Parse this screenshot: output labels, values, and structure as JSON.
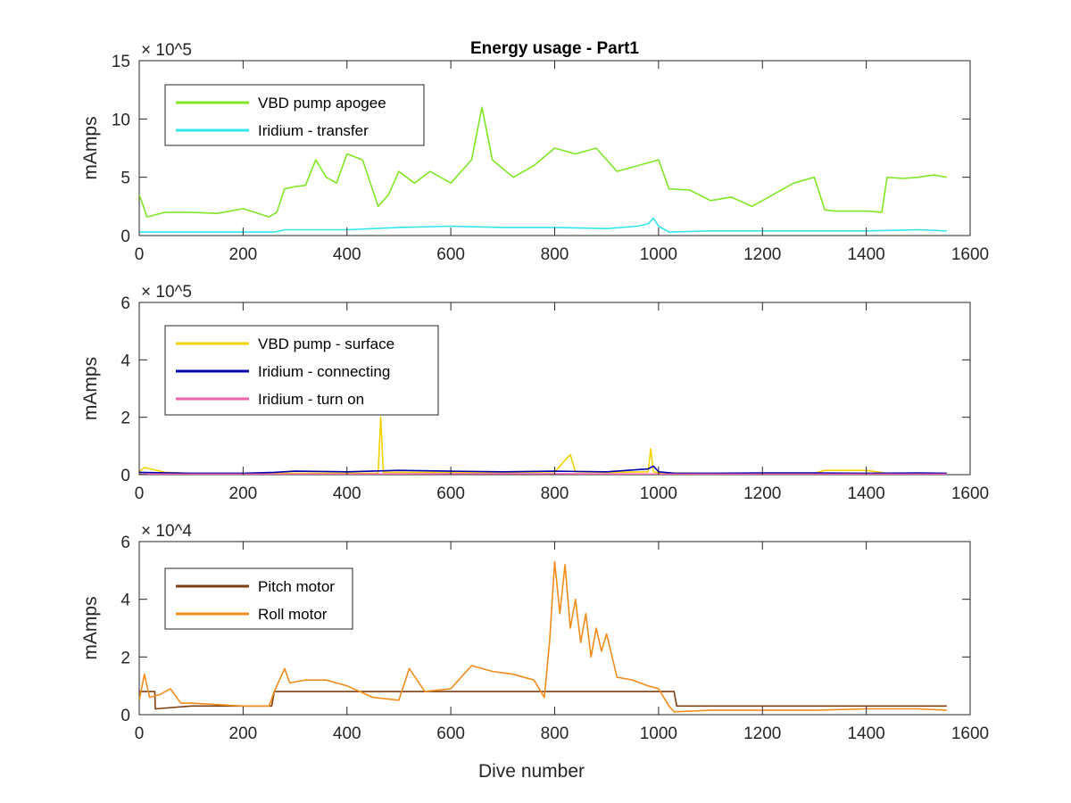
{
  "chart_data": [
    {
      "type": "line",
      "title": "Energy usage - Part1",
      "xlabel": "",
      "ylabel": "mAmps",
      "y_exponent": "× 10^5",
      "xlim": [
        0,
        1600
      ],
      "ylim": [
        0,
        15
      ],
      "x_ticks": [
        "0",
        "200",
        "400",
        "600",
        "800",
        "1000",
        "1200",
        "1400",
        "1600"
      ],
      "y_ticks": [
        "0",
        "5",
        "10",
        "15"
      ],
      "grid": false,
      "legend_position": "top-left",
      "series": [
        {
          "name": "VBD pump apogee",
          "color": "#80e626",
          "x": [
            0,
            8,
            15,
            50,
            100,
            150,
            200,
            250,
            265,
            280,
            300,
            320,
            340,
            360,
            380,
            400,
            430,
            460,
            480,
            500,
            530,
            560,
            600,
            640,
            660,
            680,
            720,
            760,
            800,
            840,
            880,
            920,
            960,
            1000,
            1020,
            1060,
            1100,
            1140,
            1180,
            1220,
            1260,
            1300,
            1320,
            1340,
            1400,
            1430,
            1440,
            1470,
            1500,
            1530,
            1555
          ],
          "values": [
            3.5,
            2.5,
            1.6,
            2.0,
            2.0,
            1.9,
            2.3,
            1.6,
            2.0,
            4.0,
            4.2,
            4.3,
            6.5,
            5.0,
            4.5,
            7.0,
            6.5,
            2.5,
            3.5,
            5.5,
            4.5,
            5.5,
            4.5,
            6.5,
            11.0,
            6.5,
            5.0,
            6.0,
            7.5,
            7.0,
            7.5,
            5.5,
            6.0,
            6.5,
            4.0,
            3.9,
            3.0,
            3.3,
            2.5,
            3.5,
            4.5,
            5.0,
            2.2,
            2.1,
            2.1,
            2.0,
            5.0,
            4.9,
            5.0,
            5.2,
            5.0
          ]
        },
        {
          "name": "Iridium - transfer",
          "color": "#33e6ee",
          "x": [
            0,
            50,
            100,
            200,
            260,
            280,
            400,
            500,
            600,
            700,
            800,
            900,
            960,
            980,
            990,
            1000,
            1020,
            1100,
            1200,
            1300,
            1400,
            1500,
            1555
          ],
          "values": [
            0.3,
            0.3,
            0.3,
            0.3,
            0.3,
            0.5,
            0.5,
            0.7,
            0.8,
            0.7,
            0.7,
            0.6,
            0.8,
            1.0,
            1.5,
            0.8,
            0.3,
            0.4,
            0.4,
            0.4,
            0.4,
            0.5,
            0.4
          ]
        }
      ]
    },
    {
      "type": "line",
      "title": "",
      "xlabel": "",
      "ylabel": "mAmps",
      "y_exponent": "× 10^5",
      "xlim": [
        0,
        1600
      ],
      "ylim": [
        0,
        6
      ],
      "x_ticks": [
        "0",
        "200",
        "400",
        "600",
        "800",
        "1000",
        "1200",
        "1400",
        "1600"
      ],
      "y_ticks": [
        "0",
        "2",
        "4",
        "6"
      ],
      "grid": false,
      "legend_position": "top-left",
      "series": [
        {
          "name": "VBD pump - surface",
          "color": "#f2d200",
          "x": [
            0,
            10,
            50,
            100,
            200,
            300,
            400,
            460,
            465,
            470,
            500,
            600,
            700,
            800,
            820,
            830,
            840,
            900,
            980,
            985,
            990,
            1000,
            1100,
            1200,
            1300,
            1320,
            1400,
            1440,
            1500,
            1555
          ],
          "values": [
            0.1,
            0.25,
            0.08,
            0.05,
            0.05,
            0.05,
            0.05,
            0.05,
            2.0,
            0.08,
            0.08,
            0.08,
            0.08,
            0.1,
            0.5,
            0.7,
            0.1,
            0.08,
            0.1,
            0.9,
            0.1,
            0.06,
            0.05,
            0.05,
            0.05,
            0.15,
            0.15,
            0.05,
            0.05,
            0.05
          ]
        },
        {
          "name": "Iridium - connecting",
          "color": "#0000b4",
          "x": [
            0,
            100,
            200,
            260,
            300,
            400,
            500,
            600,
            700,
            800,
            900,
            980,
            990,
            1000,
            1030,
            1100,
            1200,
            1300,
            1400,
            1500,
            1555
          ],
          "values": [
            0.08,
            0.05,
            0.05,
            0.08,
            0.12,
            0.1,
            0.15,
            0.12,
            0.1,
            0.12,
            0.1,
            0.2,
            0.3,
            0.1,
            0.05,
            0.05,
            0.06,
            0.06,
            0.05,
            0.06,
            0.05
          ]
        },
        {
          "name": "Iridium - turn on",
          "color": "#f062aa",
          "x": [
            0,
            200,
            400,
            600,
            800,
            1000,
            1200,
            1400,
            1555
          ],
          "values": [
            0.02,
            0.02,
            0.02,
            0.03,
            0.03,
            0.02,
            0.02,
            0.02,
            0.02
          ]
        }
      ]
    },
    {
      "type": "line",
      "title": "",
      "xlabel": "Dive number",
      "ylabel": "mAmps",
      "y_exponent": "× 10^4",
      "xlim": [
        0,
        1600
      ],
      "ylim": [
        0,
        6
      ],
      "x_ticks": [
        "0",
        "200",
        "400",
        "600",
        "800",
        "1000",
        "1200",
        "1400",
        "1600"
      ],
      "y_ticks": [
        "0",
        "2",
        "4",
        "6"
      ],
      "grid": false,
      "legend_position": "top-left",
      "series": [
        {
          "name": "Pitch motor",
          "color": "#7f3f12",
          "x": [
            0,
            30,
            31,
            100,
            200,
            255,
            260,
            400,
            600,
            800,
            1000,
            1030,
            1035,
            1200,
            1400,
            1555
          ],
          "values": [
            0.8,
            0.8,
            0.2,
            0.3,
            0.3,
            0.3,
            0.8,
            0.8,
            0.8,
            0.8,
            0.8,
            0.8,
            0.3,
            0.3,
            0.3,
            0.3
          ]
        },
        {
          "name": "Roll motor",
          "color": "#f28c1c",
          "x": [
            0,
            10,
            20,
            40,
            60,
            80,
            100,
            150,
            200,
            250,
            260,
            280,
            290,
            320,
            360,
            400,
            450,
            500,
            520,
            550,
            600,
            640,
            680,
            720,
            760,
            780,
            790,
            800,
            810,
            820,
            830,
            840,
            850,
            860,
            870,
            880,
            890,
            900,
            920,
            950,
            980,
            1000,
            1010,
            1020,
            1030,
            1100,
            1200,
            1300,
            1400,
            1500,
            1555
          ],
          "values": [
            0.5,
            1.4,
            0.6,
            0.7,
            0.9,
            0.4,
            0.4,
            0.35,
            0.3,
            0.3,
            0.8,
            1.6,
            1.1,
            1.2,
            1.2,
            1.0,
            0.6,
            0.5,
            1.6,
            0.8,
            0.9,
            1.7,
            1.5,
            1.4,
            1.2,
            0.6,
            2.5,
            5.3,
            3.5,
            5.2,
            3.0,
            4.0,
            2.5,
            3.5,
            2.0,
            3.0,
            2.2,
            2.8,
            1.3,
            1.2,
            1.0,
            0.9,
            0.6,
            0.3,
            0.1,
            0.15,
            0.15,
            0.15,
            0.2,
            0.2,
            0.15
          ]
        }
      ]
    }
  ]
}
